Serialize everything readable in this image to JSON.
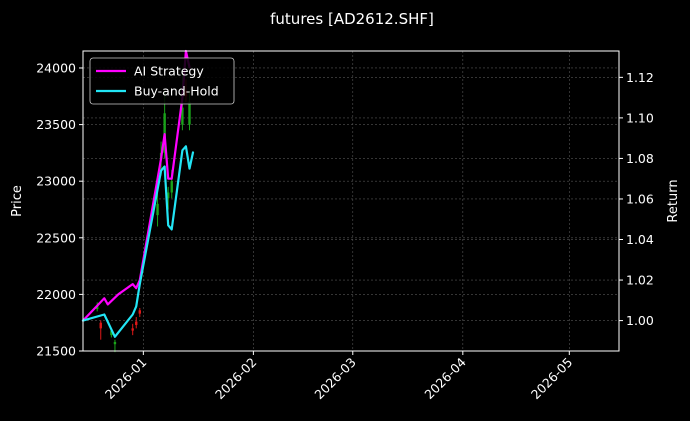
{
  "chart_data": {
    "type": "line",
    "title": "futures [AD2612.SHF]",
    "xlabel": "",
    "ylabel_left": "Price",
    "ylabel_right": "Return",
    "x_range": [
      "2025-12-15",
      "2026-05-15"
    ],
    "x_ticks": [
      "2026-01",
      "2026-02",
      "2026-03",
      "2026-04",
      "2026-05"
    ],
    "x_tick_dates": [
      "2026-01-01",
      "2026-02-01",
      "2026-03-01",
      "2026-04-01",
      "2026-05-01"
    ],
    "ylim_left": [
      21500,
      24150
    ],
    "y_ticks_left": [
      "21500",
      "22000",
      "22500",
      "23000",
      "23500",
      "24000"
    ],
    "ylim_right": [
      0.985,
      1.133
    ],
    "y_ticks_right": [
      "1.00",
      "1.02",
      "1.04",
      "1.06",
      "1.08",
      "1.10",
      "1.12"
    ],
    "grid": true,
    "legend_position": "top-left",
    "colors": {
      "ai_strategy": "#ff00ff",
      "buy_and_hold": "#22e5f5",
      "candle_up": "#1aa31a",
      "candle_down": "#e01818",
      "background": "#000000",
      "grid": "#555555"
    },
    "series": [
      {
        "name": "AI Strategy",
        "axis": "right",
        "x": [
          "2025-12-15",
          "2025-12-21",
          "2025-12-22",
          "2025-12-25",
          "2025-12-29",
          "2025-12-30",
          "2025-12-31",
          "2026-01-06",
          "2026-01-07",
          "2026-01-08",
          "2026-01-09",
          "2026-01-12",
          "2026-01-13",
          "2026-01-14"
        ],
        "values": [
          1.0,
          1.011,
          1.008,
          1.013,
          1.018,
          1.016,
          1.02,
          1.08,
          1.092,
          1.07,
          1.07,
          1.11,
          1.133,
          1.125
        ]
      },
      {
        "name": "Buy-and-Hold",
        "axis": "right",
        "x": [
          "2025-12-15",
          "2025-12-21",
          "2025-12-24",
          "2025-12-29",
          "2025-12-30",
          "2025-12-31",
          "2026-01-06",
          "2026-01-07",
          "2026-01-08",
          "2026-01-09",
          "2026-01-12",
          "2026-01-13",
          "2026-01-14",
          "2026-01-15"
        ],
        "values": [
          1.0,
          1.003,
          0.992,
          1.003,
          1.007,
          1.018,
          1.074,
          1.076,
          1.047,
          1.045,
          1.084,
          1.086,
          1.075,
          1.083
        ]
      }
    ],
    "candles": [
      {
        "date": "2025-12-19",
        "open": 21870,
        "close": 21900,
        "low": 21850,
        "high": 21930
      },
      {
        "date": "2025-12-20",
        "open": 21750,
        "close": 21700,
        "low": 21600,
        "high": 21770
      },
      {
        "date": "2025-12-23",
        "open": 21640,
        "close": 21680,
        "low": 21620,
        "high": 21700
      },
      {
        "date": "2025-12-24",
        "open": 21560,
        "close": 21580,
        "low": 21490,
        "high": 21600
      },
      {
        "date": "2025-12-29",
        "open": 21700,
        "close": 21680,
        "low": 21640,
        "high": 21740
      },
      {
        "date": "2025-12-30",
        "open": 21760,
        "close": 21730,
        "low": 21700,
        "high": 21800
      },
      {
        "date": "2025-12-31",
        "open": 21860,
        "close": 21830,
        "low": 21800,
        "high": 21880
      },
      {
        "date": "2026-01-05",
        "open": 22700,
        "close": 22800,
        "low": 22600,
        "high": 22900
      },
      {
        "date": "2026-01-06",
        "open": 23200,
        "close": 23250,
        "low": 23050,
        "high": 23350
      },
      {
        "date": "2026-01-07",
        "open": 23250,
        "close": 23600,
        "low": 23200,
        "high": 23800
      },
      {
        "date": "2026-01-08",
        "open": 22850,
        "close": 22900,
        "low": 22750,
        "high": 22950
      },
      {
        "date": "2026-01-09",
        "open": 22900,
        "close": 23000,
        "low": 22850,
        "high": 23100
      },
      {
        "date": "2026-01-12",
        "open": 23500,
        "close": 23650,
        "low": 23450,
        "high": 24000
      },
      {
        "date": "2026-01-13",
        "open": 23800,
        "close": 23750,
        "low": 23700,
        "high": 23900
      },
      {
        "date": "2026-01-14",
        "open": 23500,
        "close": 23700,
        "low": 23450,
        "high": 23800
      }
    ]
  }
}
